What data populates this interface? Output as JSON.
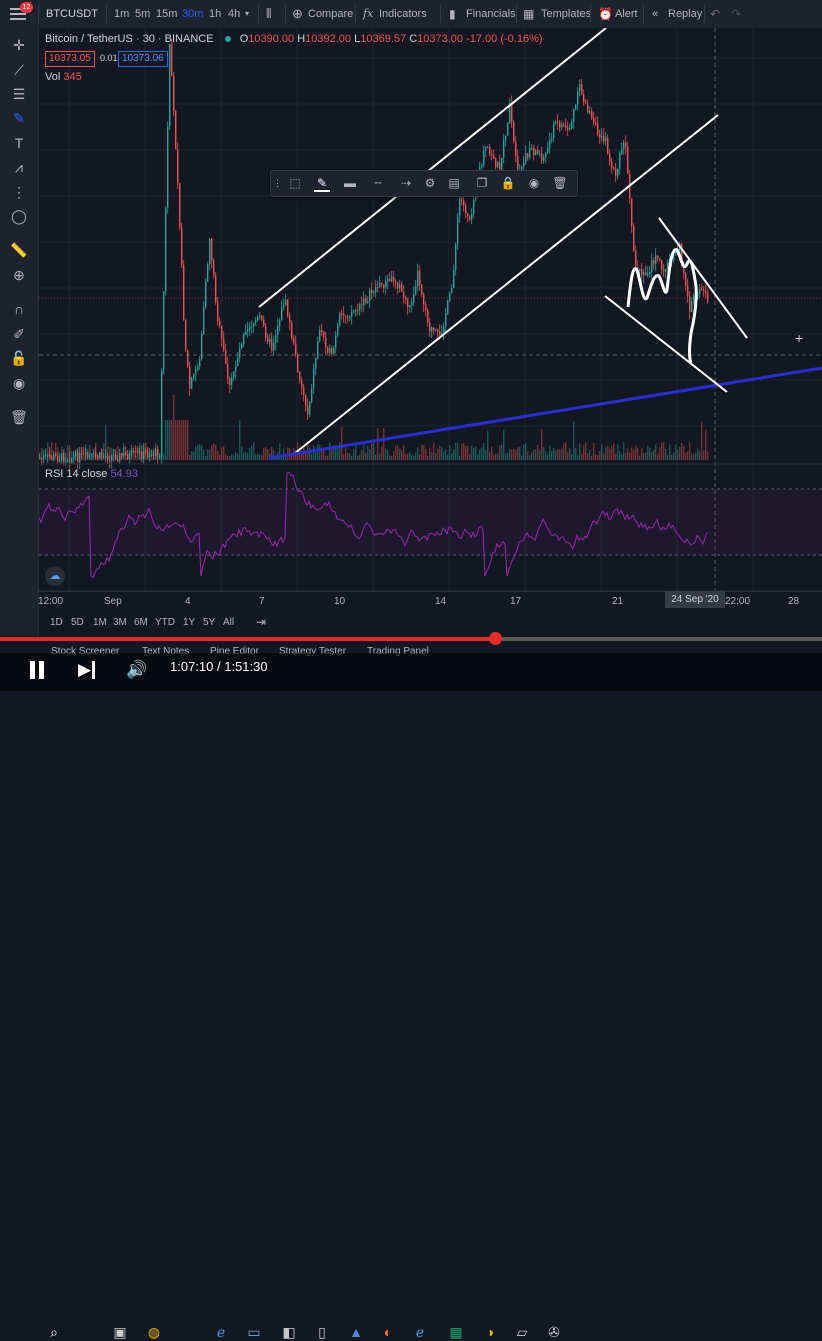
{
  "toolbar": {
    "symbol": "BTCUSDT",
    "intervals": [
      "1m",
      "5m",
      "15m",
      "30m",
      "1h",
      "4h"
    ],
    "active_interval": "30m",
    "compare": "Compare",
    "indicators": "Indicators",
    "financials": "Financials",
    "templates": "Templates",
    "alert": "Alert",
    "replay": "Replay",
    "menu_badge": "12"
  },
  "legend": {
    "title": "Bitcoin / TetherUS",
    "interval": "30",
    "exchange": "BINANCE",
    "o_label": "O",
    "o_value": "10390.00",
    "h_label": "H",
    "h_value": "10392.00",
    "l_label": "L",
    "l_value": "10369.57",
    "c_label": "C",
    "c_value": "10373.00",
    "change": "-17.00 (-0.16%)",
    "bid": "10373.05",
    "spread": "0.01",
    "ask": "10373.06",
    "vol_label": "Vol",
    "vol_value": "345",
    "rsi_label": "RSI 14 close",
    "rsi_value": "54.93"
  },
  "time_axis": {
    "ticks": [
      {
        "label": "12:00"
      },
      {
        "label": "Sep"
      },
      {
        "label": "4"
      },
      {
        "label": "7"
      },
      {
        "label": "10"
      },
      {
        "label": "14"
      },
      {
        "label": "17"
      },
      {
        "label": "21"
      },
      {
        "label": "22:00"
      },
      {
        "label": "28"
      }
    ],
    "cursor_label": "24 Sep '20"
  },
  "ranges": [
    "1D",
    "5D",
    "1M",
    "3M",
    "6M",
    "YTD",
    "1Y",
    "5Y",
    "All"
  ],
  "bottom_tabs": [
    "Stock Screener",
    "Text Notes",
    "Pine Editor",
    "Strategy Tester",
    "Trading Panel"
  ],
  "player": {
    "time": "1:07:10 / 1:51:30",
    "progress": 0.602
  },
  "colors": {
    "up": "#26a69a",
    "down": "#ef5350",
    "rsi": "#9c27b0",
    "trend_blue": "#2a2fd0",
    "accent": "#2962ff"
  }
}
